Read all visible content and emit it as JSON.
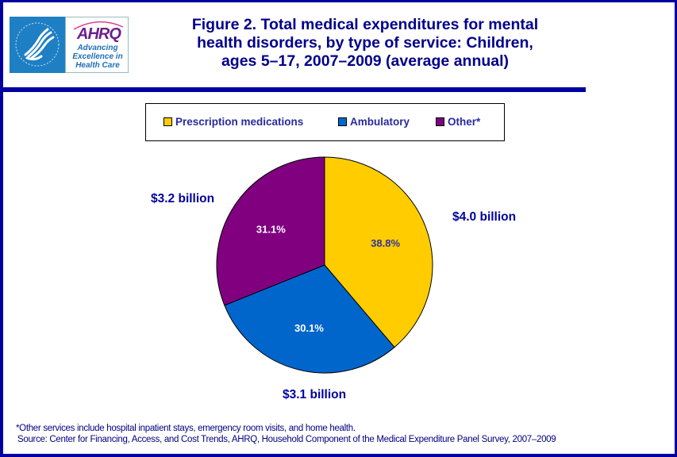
{
  "header": {
    "logo": {
      "hhs_icon": "hhs-eagle-icon",
      "ahrq_wordmark": "AHRQ",
      "ahrq_tagline": "Advancing Excellence in Health Care"
    },
    "title_lines": [
      "Figure 2. Total medical expenditures for mental",
      "health disorders, by type of service: Children,",
      "ages 5–17, 2007–2009 (average annual)"
    ]
  },
  "colors": {
    "frame": "#0000a0",
    "prescription": "#ffcc00",
    "ambulatory": "#0066cc",
    "other": "#800080",
    "callout_text": "#0000a0"
  },
  "chart_data": {
    "type": "pie",
    "title": "Figure 2. Total medical expenditures for mental health disorders, by type of service: Children, ages 5–17, 2007–2009 (average annual)",
    "legend_position": "top",
    "categories": [
      "Prescription medications",
      "Ambulatory",
      "Other*"
    ],
    "values": [
      38.8,
      30.1,
      31.1
    ],
    "unit": "%",
    "value_labels": [
      "38.8%",
      "30.1%",
      "31.1%"
    ],
    "amounts": [
      "$4.0 billion",
      "$3.1 billion",
      "$3.2 billion"
    ],
    "colors": [
      "#ffcc00",
      "#0066cc",
      "#800080"
    ],
    "label_colors": [
      "#333399",
      "#ffffff",
      "#ffffff"
    ],
    "start_angle_deg": 0,
    "direction": "clockwise"
  },
  "footnotes": {
    "note": "*Other services include hospital inpatient stays, emergency room visits, and home health.",
    "source": "Source: Center for Financing, Access, and Cost Trends, AHRQ, Household Component of the Medical Expenditure Panel Survey,  2007–2009"
  }
}
